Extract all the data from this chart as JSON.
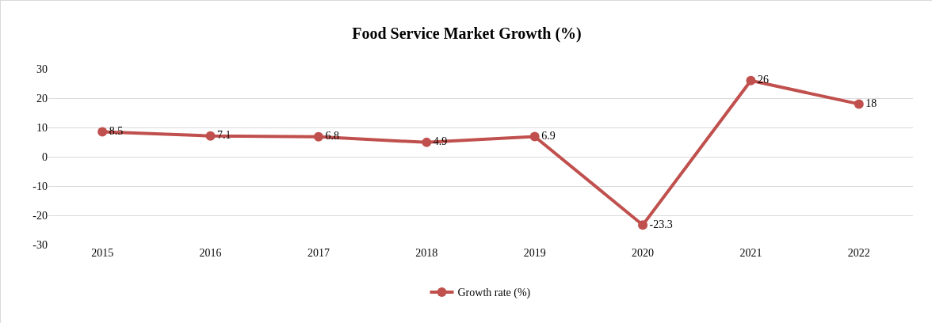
{
  "chart_data": {
    "type": "line",
    "title": "Food Service Market Growth (%)",
    "categories": [
      "2015",
      "2016",
      "2017",
      "2018",
      "2019",
      "2020",
      "2021",
      "2022"
    ],
    "series": [
      {
        "name": "Growth rate (%)",
        "color": "#c0504d",
        "values": [
          8.5,
          7.1,
          6.8,
          4.9,
          6.9,
          -23.3,
          26,
          18
        ]
      }
    ],
    "ylim": [
      -30,
      30
    ],
    "yticks": [
      -30,
      -20,
      -10,
      0,
      10,
      20,
      30
    ],
    "grid": "y",
    "legend": "bottom",
    "marker": "circle",
    "line_style": "solid",
    "data_labels": true
  }
}
